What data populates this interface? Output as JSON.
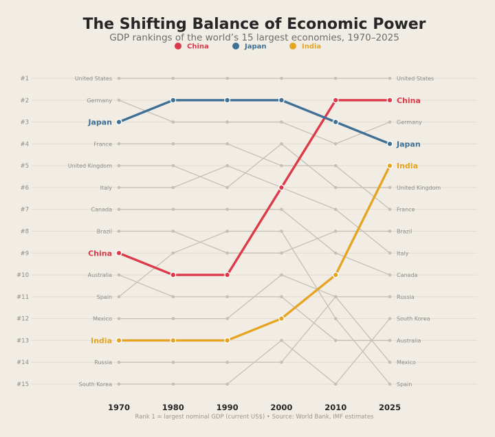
{
  "chart_data": {
    "type": "line",
    "subtype": "bump",
    "title": "The Shifting Balance of Economic Power",
    "subtitle": "GDP rankings of the world’s 15 largest economies, 1970–2025",
    "footnote": "Rank 1 = largest nominal GDP (current US$)  •  Source: World Bank, IMF estimates",
    "x": [
      "1970",
      "1980",
      "1990",
      "2000",
      "2010",
      "2025"
    ],
    "y_ticks": [
      "#1",
      "#2",
      "#3",
      "#4",
      "#5",
      "#6",
      "#7",
      "#8",
      "#9",
      "#10",
      "#11",
      "#12",
      "#13",
      "#14",
      "#15"
    ],
    "ylim": [
      1,
      15
    ],
    "y_inverted": true,
    "legend": {
      "placement": "top-center",
      "entries": [
        "China",
        "Japan",
        "India"
      ]
    },
    "highlight_series": [
      {
        "name": "China",
        "color": "#dc3a4a",
        "ranks": [
          9,
          10,
          10,
          6,
          2,
          2
        ]
      },
      {
        "name": "Japan",
        "color": "#3f6f95",
        "ranks": [
          3,
          2,
          2,
          2,
          3,
          4
        ]
      },
      {
        "name": "India",
        "color": "#e5a523",
        "ranks": [
          13,
          13,
          13,
          12,
          10,
          5
        ]
      }
    ],
    "context_series": [
      {
        "name": "United States",
        "ranks": [
          1,
          1,
          1,
          1,
          1,
          1
        ]
      },
      {
        "name": "Germany",
        "ranks": [
          2,
          3,
          3,
          3,
          4,
          3
        ]
      },
      {
        "name": "France",
        "ranks": [
          4,
          4,
          4,
          5,
          5,
          7
        ]
      },
      {
        "name": "United Kingdom",
        "ranks": [
          5,
          5,
          6,
          4,
          6,
          6
        ]
      },
      {
        "name": "Italy",
        "ranks": [
          6,
          6,
          5,
          6,
          7,
          9
        ]
      },
      {
        "name": "Canada",
        "ranks": [
          7,
          7,
          7,
          7,
          9,
          10
        ]
      },
      {
        "name": "Brazil",
        "ranks": [
          8,
          8,
          9,
          9,
          8,
          8
        ]
      },
      {
        "name": "Australia",
        "ranks": [
          10,
          11,
          11,
          11,
          13,
          13
        ]
      },
      {
        "name": "Spain",
        "ranks": [
          11,
          9,
          8,
          8,
          12,
          15
        ]
      },
      {
        "name": "Mexico",
        "ranks": [
          12,
          12,
          12,
          10,
          11,
          14
        ]
      },
      {
        "name": "Russia",
        "ranks": [
          14,
          14,
          14,
          14,
          11,
          11
        ]
      },
      {
        "name": "South Korea",
        "ranks": [
          15,
          15,
          15,
          13,
          15,
          12
        ]
      }
    ],
    "grid": true,
    "background": "#f1ede4"
  }
}
